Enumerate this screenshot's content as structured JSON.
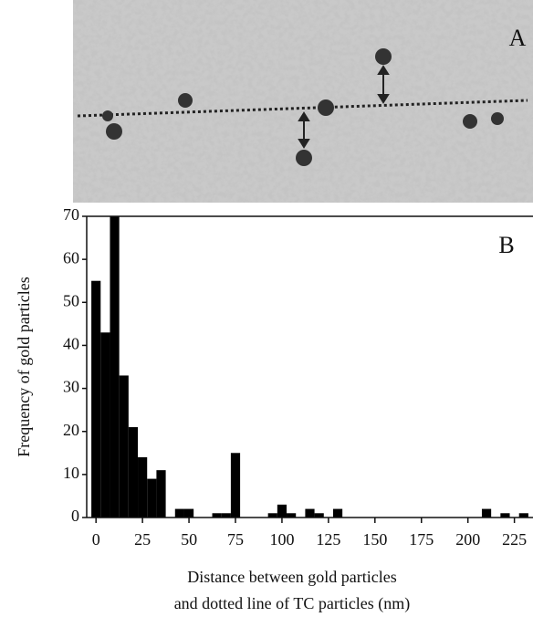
{
  "chart_data": {
    "type": "histogram",
    "panel_labels": [
      "A",
      "B"
    ],
    "xlabel": [
      "Distance between gold particles",
      "and dotted line of TC particles (nm)"
    ],
    "ylabel": "Frequency of gold particles",
    "bins": [
      -2.5,
      2.5,
      7.5,
      12.5,
      17.5,
      22.5,
      27.5,
      32.5,
      37.5,
      42.5,
      47.5,
      52.5,
      57.5,
      62.5,
      67.5,
      72.5,
      77.5,
      82.5,
      87.5,
      92.5,
      97.5,
      102.5,
      107.5,
      112.5,
      117.5,
      122.5,
      127.5,
      132.5,
      137.5,
      142.5,
      147.5,
      152.5,
      157.5,
      162.5,
      167.5,
      172.5,
      177.5,
      182.5,
      187.5,
      192.5,
      197.5,
      202.5,
      207.5,
      212.5,
      217.5,
      222.5,
      227.5,
      232.5
    ],
    "values": [
      55,
      43,
      70,
      33,
      21,
      14,
      9,
      11,
      0,
      2,
      2,
      0,
      0,
      1,
      1,
      15,
      0,
      0,
      0,
      1,
      3,
      1,
      0,
      2,
      1,
      0,
      2,
      0,
      0,
      0,
      0,
      0,
      0,
      0,
      0,
      0,
      0,
      0,
      0,
      0,
      0,
      0,
      2,
      0,
      1,
      0,
      1
    ],
    "color": "#000000",
    "xlim": [
      -5,
      235
    ],
    "xticks": [
      0,
      25,
      50,
      75,
      100,
      125,
      150,
      175,
      200,
      225
    ],
    "ylim": [
      0,
      70
    ],
    "yticks": [
      0,
      10,
      20,
      30,
      40,
      50,
      60,
      70
    ]
  }
}
